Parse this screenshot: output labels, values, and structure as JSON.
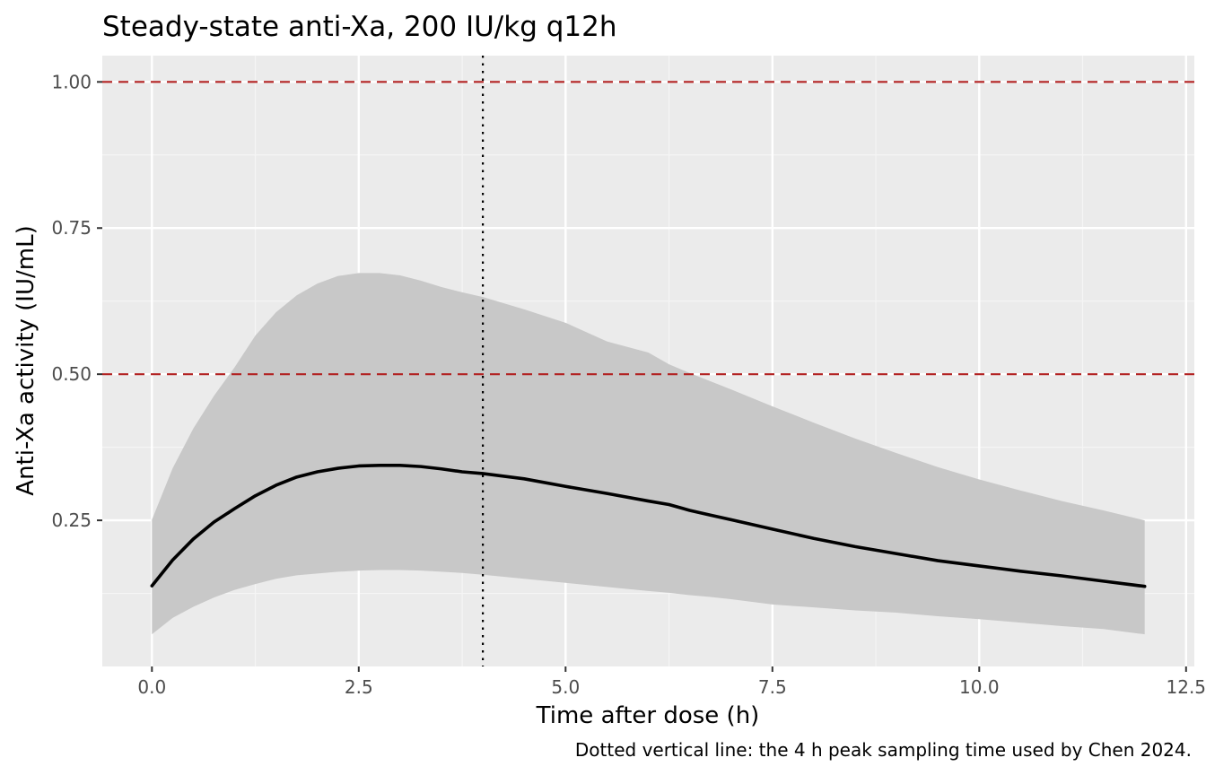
{
  "chart_data": {
    "type": "line",
    "title": "Steady-state anti-Xa, 200 IU/kg q12h",
    "xlabel": "Time after dose (h)",
    "ylabel": "Anti-Xa activity (IU/mL)",
    "caption": "Dotted vertical line: the 4 h peak sampling time used by Chen 2024.",
    "xlim": [
      -0.6,
      12.6
    ],
    "ylim": [
      -0.0,
      1.045
    ],
    "x_ticks": [
      0.0,
      2.5,
      5.0,
      7.5,
      10.0,
      12.5
    ],
    "x_tick_labels": [
      "0.0",
      "2.5",
      "5.0",
      "7.5",
      "10.0",
      "12.5"
    ],
    "y_ticks": [
      0.25,
      0.5,
      0.75,
      1.0
    ],
    "y_tick_labels": [
      "0.25",
      "0.50",
      "0.75",
      "1.00"
    ],
    "grid": true,
    "legend": "none",
    "colors": {
      "panel_background": "#ebebeb",
      "grid_major": "#ffffff",
      "grid_minor": "#f5f5f5",
      "ribbon": "#c8c8c8",
      "median_line": "#000000",
      "reference_lines": "#b22222",
      "sampling_time_line": "#000000"
    },
    "reference_lines": [
      {
        "y": 0.5,
        "style": "dashed"
      },
      {
        "y": 1.0,
        "style": "dashed"
      }
    ],
    "sampling_time_line": {
      "x": 4.0,
      "style": "dotted"
    },
    "series": [
      {
        "kind": "median-line",
        "x": [
          0,
          0.25,
          0.5,
          0.75,
          1.0,
          1.25,
          1.5,
          1.75,
          2.0,
          2.25,
          2.5,
          2.75,
          3.0,
          3.25,
          3.5,
          3.75,
          4.0,
          4.5,
          5.0,
          5.5,
          6.0,
          6.25,
          6.5,
          6.75,
          7.0,
          7.5,
          8.0,
          8.5,
          9.0,
          9.5,
          10.0,
          10.5,
          11.0,
          11.5,
          12.0
        ],
        "y": [
          0.138,
          0.182,
          0.218,
          0.247,
          0.27,
          0.292,
          0.31,
          0.324,
          0.333,
          0.339,
          0.343,
          0.344,
          0.344,
          0.342,
          0.338,
          0.333,
          0.33,
          0.321,
          0.308,
          0.296,
          0.283,
          0.277,
          0.267,
          0.259,
          0.251,
          0.235,
          0.219,
          0.205,
          0.193,
          0.181,
          0.172,
          0.163,
          0.155,
          0.146,
          0.137
        ]
      },
      {
        "kind": "ribbon",
        "x": [
          0,
          0.25,
          0.5,
          0.75,
          1.0,
          1.25,
          1.5,
          1.75,
          2.0,
          2.25,
          2.5,
          2.75,
          3.0,
          3.25,
          3.5,
          3.75,
          4.0,
          4.5,
          5.0,
          5.5,
          6.0,
          6.25,
          6.5,
          6.75,
          7.0,
          7.5,
          8.0,
          8.5,
          9.0,
          9.5,
          10.0,
          10.5,
          11.0,
          11.5,
          12.0
        ],
        "lower": [
          0.055,
          0.083,
          0.102,
          0.118,
          0.131,
          0.141,
          0.15,
          0.156,
          0.159,
          0.162,
          0.164,
          0.165,
          0.165,
          0.164,
          0.162,
          0.16,
          0.157,
          0.15,
          0.143,
          0.136,
          0.129,
          0.126,
          0.122,
          0.119,
          0.115,
          0.106,
          0.101,
          0.096,
          0.092,
          0.086,
          0.081,
          0.075,
          0.069,
          0.064,
          0.055
        ],
        "upper": [
          0.251,
          0.339,
          0.407,
          0.463,
          0.512,
          0.566,
          0.606,
          0.635,
          0.655,
          0.668,
          0.673,
          0.673,
          0.669,
          0.66,
          0.649,
          0.64,
          0.632,
          0.611,
          0.588,
          0.556,
          0.537,
          0.517,
          0.502,
          0.488,
          0.474,
          0.445,
          0.417,
          0.39,
          0.365,
          0.341,
          0.32,
          0.301,
          0.283,
          0.267,
          0.25
        ]
      }
    ]
  }
}
